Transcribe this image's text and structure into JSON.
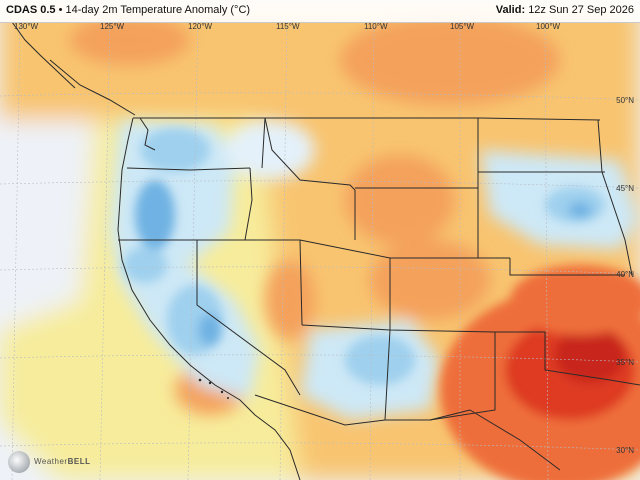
{
  "header": {
    "model": "CDAS 0.5",
    "product": "14-day 2m Temperature Anomaly (°C)",
    "valid_label": "Valid:",
    "valid_time": "12z Sun 27 Sep 2026"
  },
  "longitudes": [
    "130°W",
    "125°W",
    "120°W",
    "115°W",
    "110°W",
    "105°W",
    "100°W"
  ],
  "latitudes": [
    "50°N",
    "45°N",
    "40°N",
    "35°N",
    "30°N"
  ],
  "logo": {
    "prefix": "Weather",
    "suffix": "BELL"
  },
  "colors": {
    "ocean": "#eef2f8",
    "cold_light": "#cde8f6",
    "cold": "#9fd0ee",
    "cold_strong": "#6fb2e3",
    "warm_light": "#f7ec9b",
    "warm": "#f8c470",
    "warm_mid": "#f4a15b",
    "hot": "#ee6e3a",
    "hot_strong": "#de3a22",
    "hot_core": "#c8281b",
    "borders": "#2a2a2a"
  }
}
